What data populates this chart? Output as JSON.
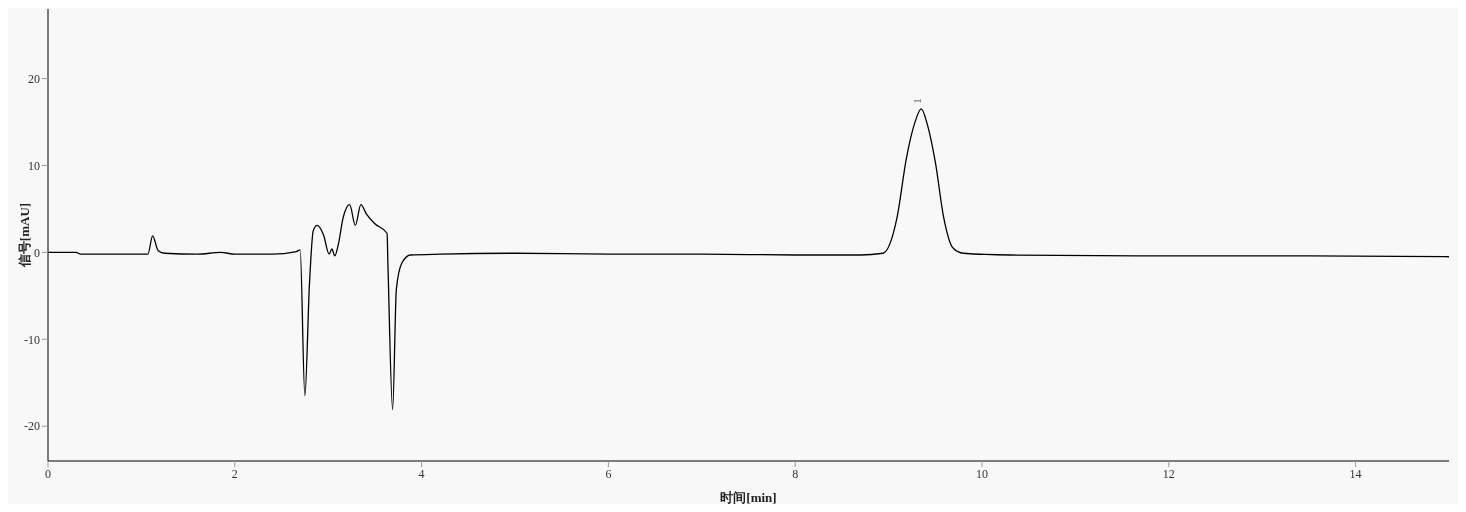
{
  "chart_data": {
    "type": "line",
    "xlabel": "时间[min]",
    "ylabel": "信号[mAU]",
    "xlim": [
      0,
      15
    ],
    "xticks": [
      0,
      2,
      4,
      6,
      8,
      10,
      12,
      14
    ],
    "ylim": [
      -24,
      28
    ],
    "yticks": [
      -20,
      -10,
      0,
      10,
      20
    ],
    "grid": false,
    "marker": "none",
    "line_style": "solid",
    "annotations": [
      {
        "text": "1",
        "x": 9.35,
        "y": 16.5
      }
    ],
    "series": [
      {
        "color": "#000000",
        "x": [
          0,
          0.3,
          0.35,
          1.07,
          1.12,
          1.18,
          1.25,
          1.6,
          1.85,
          2.0,
          2.4,
          2.66,
          2.7,
          2.75,
          2.8,
          2.84,
          2.88,
          2.95,
          3.01,
          3.04,
          3.07,
          3.11,
          3.16,
          3.23,
          3.29,
          3.35,
          3.41,
          3.5,
          3.63,
          3.64,
          3.69,
          3.73,
          3.79,
          3.88,
          4.2,
          5.0,
          6.0,
          7.0,
          8.0,
          8.7,
          8.94,
          9.09,
          9.19,
          9.28,
          9.35,
          9.41,
          9.5,
          9.59,
          9.69,
          9.8,
          10.3,
          12.0,
          13.5,
          15.0
        ],
        "values": [
          0,
          0,
          -0.2,
          -0.2,
          1.9,
          0.2,
          -0.1,
          -0.2,
          0,
          -0.2,
          -0.2,
          0.1,
          0.3,
          -16.5,
          -3.5,
          2.5,
          3.1,
          2.0,
          -0.2,
          0.4,
          -0.4,
          1.0,
          4.0,
          5.5,
          3.1,
          5.5,
          4.4,
          3.3,
          2.2,
          -1.6,
          -18.1,
          -4.2,
          -1.2,
          -0.3,
          -0.2,
          -0.1,
          -0.2,
          -0.2,
          -0.3,
          -0.3,
          -0.1,
          4.0,
          10.8,
          14.9,
          16.5,
          14.9,
          10.4,
          4.0,
          0.5,
          -0.1,
          -0.3,
          -0.4,
          -0.4,
          -0.5
        ]
      }
    ]
  }
}
